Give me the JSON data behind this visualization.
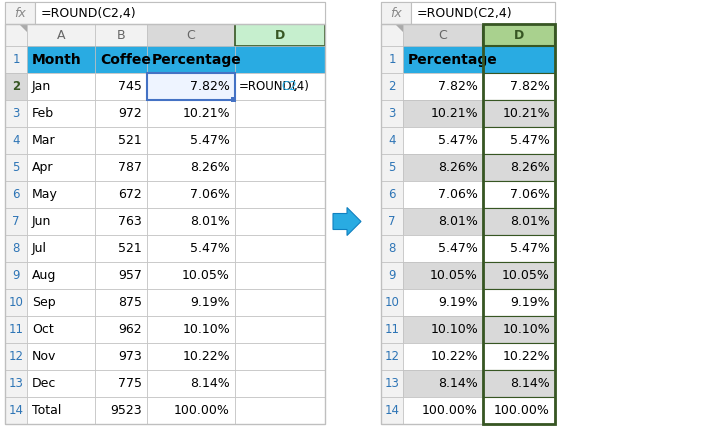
{
  "formula_bar_text": "=ROUND(C2,4)",
  "left_table": {
    "col_headers": [
      "A",
      "B",
      "C",
      "D"
    ],
    "row_nums": [
      "1",
      "2",
      "3",
      "4",
      "5",
      "6",
      "7",
      "8",
      "9",
      "10",
      "11",
      "12",
      "13",
      "14"
    ],
    "header_row": [
      "Month",
      "Coffee",
      "Percentage",
      ""
    ],
    "data": [
      [
        "Jan",
        "745",
        "7.82%",
        "=ROUND(C2,4)"
      ],
      [
        "Feb",
        "972",
        "10.21%",
        ""
      ],
      [
        "Mar",
        "521",
        "5.47%",
        ""
      ],
      [
        "Apr",
        "787",
        "8.26%",
        ""
      ],
      [
        "May",
        "672",
        "7.06%",
        ""
      ],
      [
        "Jun",
        "763",
        "8.01%",
        ""
      ],
      [
        "Jul",
        "521",
        "5.47%",
        ""
      ],
      [
        "Aug",
        "957",
        "10.05%",
        ""
      ],
      [
        "Sep",
        "875",
        "9.19%",
        ""
      ],
      [
        "Oct",
        "962",
        "10.10%",
        ""
      ],
      [
        "Nov",
        "973",
        "10.22%",
        ""
      ],
      [
        "Dec",
        "775",
        "8.14%",
        ""
      ],
      [
        "Total",
        "9523",
        "100.00%",
        ""
      ]
    ]
  },
  "right_table": {
    "col_headers": [
      "C",
      "D"
    ],
    "row_nums": [
      "1",
      "2",
      "3",
      "4",
      "5",
      "6",
      "7",
      "8",
      "9",
      "10",
      "11",
      "12",
      "13",
      "14"
    ],
    "header_row": [
      "Percentage",
      ""
    ],
    "data": [
      [
        "7.82%",
        "7.82%"
      ],
      [
        "10.21%",
        "10.21%"
      ],
      [
        "5.47%",
        "5.47%"
      ],
      [
        "8.26%",
        "8.26%"
      ],
      [
        "7.06%",
        "7.06%"
      ],
      [
        "8.01%",
        "8.01%"
      ],
      [
        "5.47%",
        "5.47%"
      ],
      [
        "10.05%",
        "10.05%"
      ],
      [
        "9.19%",
        "9.19%"
      ],
      [
        "10.10%",
        "10.10%"
      ],
      [
        "10.22%",
        "10.22%"
      ],
      [
        "8.14%",
        "8.14%"
      ],
      [
        "100.00%",
        "100.00%"
      ]
    ]
  },
  "colors": {
    "header_bg": "#29ABE2",
    "row_num_text": "#2E75B6",
    "col_header_bg": "#F2F2F2",
    "cell_white": "#FFFFFF",
    "cell_gray": "#D9D9D9",
    "grid_line": "#BFBFBF",
    "c_col_header_bg": "#D9D9D9",
    "d_col_header_bg_left": "#C6EFCE",
    "d_col_header_text_left": "#375623",
    "d_col_header_bg_right": "#A9D18E",
    "d_col_header_text_right": "#375623",
    "cell_selected_border": "#4472C4",
    "cell_selected_bg": "#DDEEFF",
    "formula_text_blue": "#29ABE2",
    "arrow_color": "#29ABE2",
    "dark_green_border": "#375623",
    "row2_num_bg": "#D9D9D9",
    "row2_num_text": "#375623"
  }
}
